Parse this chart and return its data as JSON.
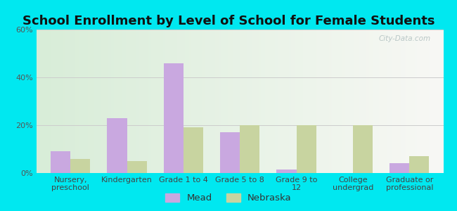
{
  "title": "School Enrollment by Level of School for Female Students",
  "categories": [
    "Nursery,\npreschool",
    "Kindergarten",
    "Grade 1 to 4",
    "Grade 5 to 8",
    "Grade 9 to\n12",
    "College\nundergrad",
    "Graduate or\nprofessional"
  ],
  "mead_values": [
    9,
    23,
    46,
    17,
    1.5,
    0,
    4
  ],
  "nebraska_values": [
    6,
    5,
    19,
    20,
    20,
    20,
    7
  ],
  "mead_color": "#c9a8e0",
  "nebraska_color": "#c8d4a0",
  "background_color": "#00e8f0",
  "plot_bg_left": "#d8edd8",
  "plot_bg_right": "#f5f5f5",
  "ylim": [
    0,
    60
  ],
  "yticks": [
    0,
    20,
    40,
    60
  ],
  "ytick_labels": [
    "0%",
    "20%",
    "40%",
    "60%"
  ],
  "grid_color": "#cccccc",
  "bar_width": 0.35,
  "title_fontsize": 13,
  "tick_fontsize": 8,
  "legend_fontsize": 9.5,
  "watermark": "City-Data.com"
}
